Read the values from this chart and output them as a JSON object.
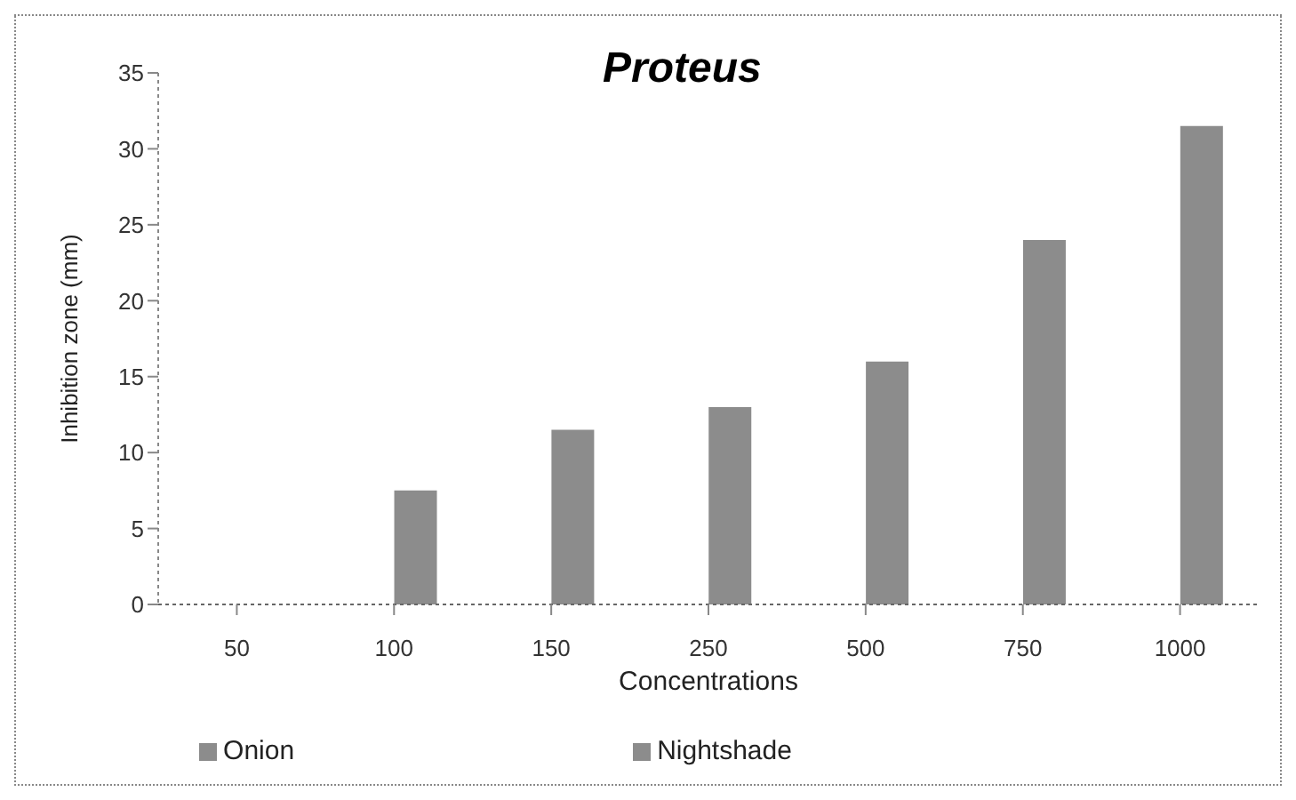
{
  "chart_data": {
    "type": "bar",
    "title": "Proteus",
    "xlabel": "Concentrations",
    "ylabel": "Inhibition zone (mm)",
    "categories": [
      "50",
      "100",
      "150",
      "250",
      "500",
      "750",
      "1000"
    ],
    "series": [
      {
        "name": "Onion",
        "color": "#8c8c8c",
        "values": [
          0,
          0,
          0,
          0,
          0,
          0,
          0
        ]
      },
      {
        "name": "Nightshade",
        "color": "#8c8c8c",
        "values": [
          0,
          7.5,
          11.5,
          13,
          16,
          24,
          31.5
        ]
      }
    ],
    "ylim": [
      0,
      35
    ],
    "yticks": [
      0,
      5,
      10,
      15,
      20,
      25,
      30,
      35
    ],
    "grid": false,
    "legend": "bottom"
  }
}
